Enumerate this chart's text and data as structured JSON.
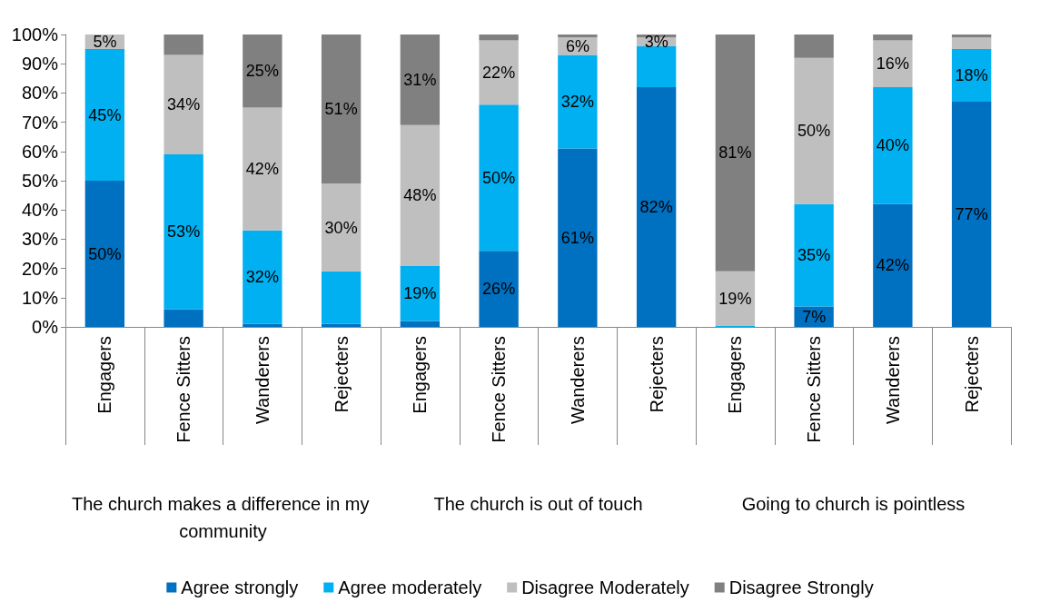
{
  "chart_data": {
    "type": "bar",
    "stacked": true,
    "categories": [
      "Engagers",
      "Fence Sitters",
      "Wanderers",
      "Rejecters",
      "Engagers",
      "Fence Sitters",
      "Wanderers",
      "Rejecters",
      "Engagers",
      "Fence Sitters",
      "Wanderers",
      "Rejecters"
    ],
    "annotations": [
      "The church makes a difference in my community",
      "The church is out of touch",
      "Going to church is pointless"
    ],
    "series": [
      {
        "name": "Agree strongly",
        "color": "#0070c0",
        "values": [
          50,
          6,
          1,
          1,
          2,
          26,
          61,
          82,
          0,
          7,
          42,
          77
        ],
        "value_labels": [
          "50%",
          null,
          null,
          null,
          null,
          "26%",
          "61%",
          "82%",
          null,
          "7%",
          "42%",
          "77%"
        ]
      },
      {
        "name": "Agree moderately",
        "color": "#00b0f0",
        "values": [
          45,
          53,
          32,
          18,
          19,
          50,
          32,
          14,
          0.5,
          35,
          40,
          18
        ],
        "value_labels": [
          "45%",
          "53%",
          "32%",
          null,
          "19%",
          "50%",
          "32%",
          null,
          null,
          "35%",
          "40%",
          "18%"
        ]
      },
      {
        "name": "Disagree Moderately",
        "color": "#bfbfbf",
        "values": [
          5,
          34,
          42,
          30,
          48,
          22,
          6,
          3,
          18.5,
          50,
          16,
          4
        ],
        "value_labels": [
          "5%",
          "34%",
          "42%",
          "30%",
          "48%",
          "22%",
          "6%",
          "3%",
          "19%",
          "50%",
          "16%",
          null
        ]
      },
      {
        "name": "Disagree Strongly",
        "color": "#808080",
        "values": [
          0,
          7,
          25,
          51,
          31,
          2,
          1,
          1,
          81,
          8,
          2,
          1
        ],
        "value_labels": [
          null,
          null,
          "25%",
          "51%",
          "31%",
          null,
          null,
          null,
          "81%",
          null,
          null,
          null
        ]
      }
    ],
    "ylim": [
      0,
      100
    ],
    "yticks": [
      {
        "value": 0,
        "label": "0%"
      },
      {
        "value": 10,
        "label": "10%"
      },
      {
        "value": 20,
        "label": "20%"
      },
      {
        "value": 30,
        "label": "30%"
      },
      {
        "value": 40,
        "label": "40%"
      },
      {
        "value": 50,
        "label": "50%"
      },
      {
        "value": 60,
        "label": "60%"
      },
      {
        "value": 70,
        "label": "70%"
      },
      {
        "value": 80,
        "label": "80%"
      },
      {
        "value": 90,
        "label": "90%"
      },
      {
        "value": 100,
        "label": "100%"
      }
    ],
    "grid": false,
    "legend": "bottom"
  }
}
